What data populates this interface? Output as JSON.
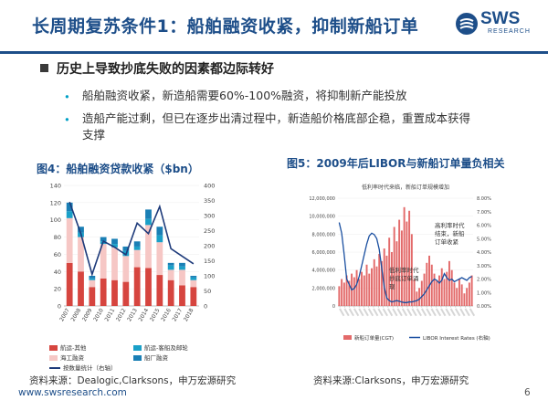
{
  "slide": {
    "title": "长周期复苏条件1：船舶融资收紧，抑制新船订单",
    "logo_text": "SWS",
    "logo_subtext": "RESEARCH",
    "heading": "历史上导致抄底失败的因素都边际转好",
    "bullets": [
      "船舶融资收紧，新造船需要60%-100%融资，将抑制新产能投放",
      "造船产能过剩，但已在逐步出清过程中，新造船价格底部企稳，重置成本获得支撑"
    ],
    "bullet_lines": [
      "造船产能过剩，但已在逐步出清过程中，新造船价格底部企稳，重置成本获得",
      "支撑"
    ],
    "bullet_glyph": "•",
    "footer_url": "www.swsresearch.com",
    "page_number": "6",
    "colors": {
      "brand": "#1d4e89",
      "accent": "#00a0c6"
    }
  },
  "chart4": {
    "caption": "图4：船舶融资贷款收紧（$bn）",
    "source": "资料来源：Dealogic,Clarksons，申万宏源研究",
    "legend": [
      "航运-其他",
      "航运-客船及邮轮",
      "海工融资",
      "船厂融资",
      "按数量统计（右轴）"
    ],
    "colors": {
      "shipping_other": "#d6453f",
      "passenger": "#1aa0c8",
      "offshore": "#f6c7c5",
      "yard": "#1a7fb5",
      "line": "#1d3a7a"
    }
  },
  "chart5": {
    "caption": "图5：2009年后LIBOR与新船订单量负相关",
    "source": "资料来源:Clarksons，申万宏源研究",
    "inner_title": "低利率时代来临，新船订单规模增加",
    "annotation_high": [
      "高利率时代",
      "结束，新船",
      "订单收紧"
    ],
    "annotation_low": [
      "低利率时代",
      "抄底订单涌",
      "现"
    ],
    "legend": [
      "新船订单量(CGT)",
      "LIBOR Interest Rates (右轴)"
    ],
    "colors": {
      "bars": "#e36a6a",
      "line": "#1a4fa0"
    }
  },
  "chart_data": [
    {
      "type": "bar",
      "title": "图4：船舶融资贷款收紧（$bn）",
      "categories": [
        "2007",
        "2008",
        "2009",
        "2010",
        "2011",
        "2012",
        "2013",
        "2014",
        "2015",
        "2016",
        "2017",
        "2018"
      ],
      "stacked": true,
      "ylim": [
        0,
        140
      ],
      "y2lim": [
        0,
        400
      ],
      "yticks": [
        0,
        20,
        40,
        60,
        80,
        100,
        120,
        140
      ],
      "y2ticks": [
        0,
        50,
        100,
        150,
        200,
        250,
        300,
        350,
        400
      ],
      "series": [
        {
          "name": "航运-其他",
          "values": [
            50,
            40,
            22,
            32,
            30,
            28,
            45,
            44,
            36,
            30,
            24,
            22
          ]
        },
        {
          "name": "海工融资",
          "values": [
            52,
            40,
            8,
            40,
            38,
            30,
            20,
            50,
            38,
            12,
            18,
            8
          ]
        },
        {
          "name": "航运-客船及邮轮",
          "values": [
            8,
            5,
            2,
            3,
            4,
            6,
            4,
            7,
            8,
            5,
            4,
            3
          ]
        },
        {
          "name": "船厂融资",
          "values": [
            10,
            7,
            3,
            5,
            6,
            5,
            6,
            11,
            10,
            3,
            4,
            2
          ]
        }
      ],
      "line": {
        "name": "按数量统计（右轴）",
        "values": [
          345,
          240,
          105,
          215,
          195,
          170,
          275,
          240,
          330,
          190,
          165,
          140
        ]
      }
    },
    {
      "type": "area",
      "title": "图5：2009年后LIBOR与新船订单量负相关",
      "yticks": [
        "0",
        "2,000,000",
        "4,000,000",
        "6,000,000",
        "8,000,000",
        "10,000,000",
        "12,000,000"
      ],
      "y2ticks": [
        "0.00%",
        "1.00%",
        "2.00%",
        "3.00%",
        "4.00%",
        "5.00%",
        "6.00%",
        "7.00%",
        "8.00%"
      ],
      "ylim": [
        0,
        12000000
      ],
      "y2lim": [
        0,
        8
      ],
      "series": [
        {
          "name": "新船订单量(CGT)",
          "values": [
            2.2,
            3.0,
            2.6,
            3.4,
            2.8,
            3.6,
            3.2,
            4.0,
            3.0,
            3.8,
            3.4,
            4.6,
            3.6,
            4.2,
            5.2,
            4.4,
            5.8,
            5.0,
            6.4,
            5.6,
            7.6,
            6.0,
            8.8,
            7.2,
            9.6,
            8.4,
            11.0,
            9.4,
            10.6,
            8.0,
            3.0,
            1.6,
            2.0,
            2.8,
            3.6,
            4.8,
            5.6,
            4.6,
            3.6,
            2.8,
            3.4,
            4.2,
            3.0,
            3.8,
            5.0,
            4.0,
            2.6,
            2.0,
            3.0,
            2.4,
            1.4,
            2.0,
            2.6,
            3.4
          ]
        },
        {
          "name": "LIBOR Interest Rates (右轴)",
          "values": [
            6.2,
            5.4,
            3.8,
            2.0,
            1.6,
            1.2,
            1.3,
            1.6,
            2.2,
            3.0,
            3.8,
            4.6,
            5.2,
            5.4,
            5.3,
            5.0,
            4.2,
            2.8,
            1.4,
            0.6,
            0.4,
            0.3,
            0.35,
            0.4,
            0.35,
            0.3,
            0.25,
            0.25,
            0.3,
            0.3,
            0.35,
            0.4,
            0.5,
            0.7,
            0.9,
            1.2,
            1.5,
            1.8,
            2.0,
            1.9,
            1.7,
            1.9,
            2.4,
            2.1,
            1.9,
            2.0,
            1.8,
            1.9,
            2.0,
            2.1,
            2.0,
            1.9,
            2.1,
            2.2
          ]
        }
      ]
    }
  ]
}
